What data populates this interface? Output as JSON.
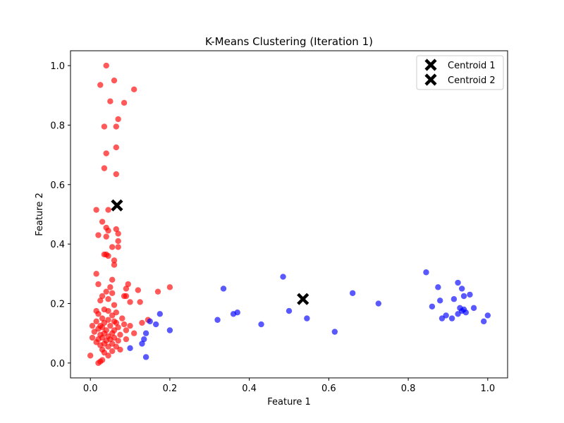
{
  "chart_data": {
    "type": "scatter",
    "title": "K-Means Clustering (Iteration 1)",
    "xlabel": "Feature 1",
    "ylabel": "Feature 2",
    "xlim": [
      -0.05,
      1.05
    ],
    "ylim": [
      -0.05,
      1.05
    ],
    "xticks": [
      "0.0",
      "0.2",
      "0.4",
      "0.6",
      "0.8",
      "1.0"
    ],
    "yticks": [
      "0.0",
      "0.2",
      "0.4",
      "0.6",
      "0.8",
      "1.0"
    ],
    "grid": false,
    "legend_position": "top-right",
    "colors": {
      "cluster_1": "#ff0000",
      "cluster_2": "#0000ff",
      "centroid": "#000000"
    },
    "series": [
      {
        "color": "#ff0000",
        "points": [
          [
            0.04,
            1.0
          ],
          [
            0.06,
            0.95
          ],
          [
            0.025,
            0.935
          ],
          [
            0.11,
            0.92
          ],
          [
            0.05,
            0.88
          ],
          [
            0.085,
            0.875
          ],
          [
            0.07,
            0.82
          ],
          [
            0.035,
            0.795
          ],
          [
            0.065,
            0.795
          ],
          [
            0.065,
            0.725
          ],
          [
            0.04,
            0.705
          ],
          [
            0.035,
            0.655
          ],
          [
            0.065,
            0.635
          ],
          [
            0.015,
            0.515
          ],
          [
            0.045,
            0.515
          ],
          [
            0.03,
            0.475
          ],
          [
            0.065,
            0.45
          ],
          [
            0.045,
            0.445
          ],
          [
            0.04,
            0.455
          ],
          [
            0.07,
            0.435
          ],
          [
            0.02,
            0.43
          ],
          [
            0.04,
            0.425
          ],
          [
            0.07,
            0.41
          ],
          [
            0.055,
            0.39
          ],
          [
            0.07,
            0.39
          ],
          [
            0.035,
            0.365
          ],
          [
            0.04,
            0.365
          ],
          [
            0.045,
            0.36
          ],
          [
            0.06,
            0.345
          ],
          [
            0.06,
            0.33
          ],
          [
            0.015,
            0.3
          ],
          [
            0.055,
            0.28
          ],
          [
            0.02,
            0.265
          ],
          [
            0.095,
            0.265
          ],
          [
            0.2,
            0.255
          ],
          [
            0.05,
            0.255
          ],
          [
            0.09,
            0.25
          ],
          [
            0.12,
            0.245
          ],
          [
            0.04,
            0.24
          ],
          [
            0.17,
            0.24
          ],
          [
            0.055,
            0.235
          ],
          [
            0.03,
            0.225
          ],
          [
            0.085,
            0.225
          ],
          [
            0.09,
            0.225
          ],
          [
            0.045,
            0.215
          ],
          [
            0.025,
            0.21
          ],
          [
            0.1,
            0.205
          ],
          [
            0.125,
            0.205
          ],
          [
            0.06,
            0.195
          ],
          [
            0.035,
            0.18
          ],
          [
            0.015,
            0.175
          ],
          [
            0.045,
            0.175
          ],
          [
            0.065,
            0.17
          ],
          [
            0.02,
            0.165
          ],
          [
            0.055,
            0.16
          ],
          [
            0.03,
            0.15
          ],
          [
            0.08,
            0.15
          ],
          [
            0.045,
            0.145
          ],
          [
            0.145,
            0.145
          ],
          [
            0.06,
            0.14
          ],
          [
            0.015,
            0.14
          ],
          [
            0.035,
            0.135
          ],
          [
            0.065,
            0.135
          ],
          [
            0.13,
            0.135
          ],
          [
            0.085,
            0.13
          ],
          [
            0.005,
            0.125
          ],
          [
            0.025,
            0.125
          ],
          [
            0.05,
            0.125
          ],
          [
            0.1,
            0.125
          ],
          [
            0.03,
            0.12
          ],
          [
            0.07,
            0.12
          ],
          [
            0.02,
            0.115
          ],
          [
            0.04,
            0.11
          ],
          [
            0.06,
            0.11
          ],
          [
            0.09,
            0.11
          ],
          [
            0.01,
            0.105
          ],
          [
            0.035,
            0.1
          ],
          [
            0.055,
            0.1
          ],
          [
            0.11,
            0.1
          ],
          [
            0.025,
            0.095
          ],
          [
            0.075,
            0.095
          ],
          [
            0.045,
            0.09
          ],
          [
            0.005,
            0.085
          ],
          [
            0.03,
            0.085
          ],
          [
            0.06,
            0.085
          ],
          [
            0.02,
            0.08
          ],
          [
            0.05,
            0.08
          ],
          [
            0.09,
            0.08
          ],
          [
            0.04,
            0.075
          ],
          [
            0.07,
            0.075
          ],
          [
            0.015,
            0.07
          ],
          [
            0.035,
            0.065
          ],
          [
            0.055,
            0.065
          ],
          [
            0.025,
            0.06
          ],
          [
            0.045,
            0.055
          ],
          [
            0.065,
            0.055
          ],
          [
            0.03,
            0.045
          ],
          [
            0.055,
            0.04
          ],
          [
            0.075,
            0.045
          ],
          [
            0.035,
            0.035
          ],
          [
            0.0,
            0.025
          ],
          [
            0.045,
            0.025
          ],
          [
            0.03,
            0.01
          ],
          [
            0.025,
            0.005
          ],
          [
            0.02,
            0.0
          ]
        ]
      },
      {
        "color": "#0000ff",
        "points": [
          [
            0.14,
            0.02
          ],
          [
            0.14,
            0.1
          ],
          [
            0.135,
            0.08
          ],
          [
            0.13,
            0.065
          ],
          [
            0.15,
            0.14
          ],
          [
            0.165,
            0.13
          ],
          [
            0.1,
            0.05
          ],
          [
            0.175,
            0.165
          ],
          [
            0.2,
            0.11
          ],
          [
            0.32,
            0.145
          ],
          [
            0.335,
            0.25
          ],
          [
            0.36,
            0.165
          ],
          [
            0.37,
            0.17
          ],
          [
            0.43,
            0.13
          ],
          [
            0.485,
            0.29
          ],
          [
            0.5,
            0.175
          ],
          [
            0.545,
            0.15
          ],
          [
            0.615,
            0.105
          ],
          [
            0.66,
            0.235
          ],
          [
            0.725,
            0.2
          ],
          [
            0.845,
            0.305
          ],
          [
            0.86,
            0.19
          ],
          [
            0.875,
            0.255
          ],
          [
            0.88,
            0.21
          ],
          [
            0.885,
            0.15
          ],
          [
            0.895,
            0.16
          ],
          [
            0.91,
            0.15
          ],
          [
            0.915,
            0.215
          ],
          [
            0.925,
            0.27
          ],
          [
            0.93,
            0.185
          ],
          [
            0.935,
            0.25
          ],
          [
            0.935,
            0.175
          ],
          [
            0.94,
            0.225
          ],
          [
            0.945,
            0.17
          ],
          [
            0.955,
            0.23
          ],
          [
            0.965,
            0.185
          ],
          [
            0.99,
            0.14
          ],
          [
            1.0,
            0.16
          ],
          [
            0.925,
            0.165
          ],
          [
            0.94,
            0.18
          ]
        ]
      }
    ],
    "centroids": [
      {
        "name": "Centroid 1",
        "x": 0.067,
        "y": 0.53
      },
      {
        "name": "Centroid 2",
        "x": 0.535,
        "y": 0.215
      }
    ]
  }
}
